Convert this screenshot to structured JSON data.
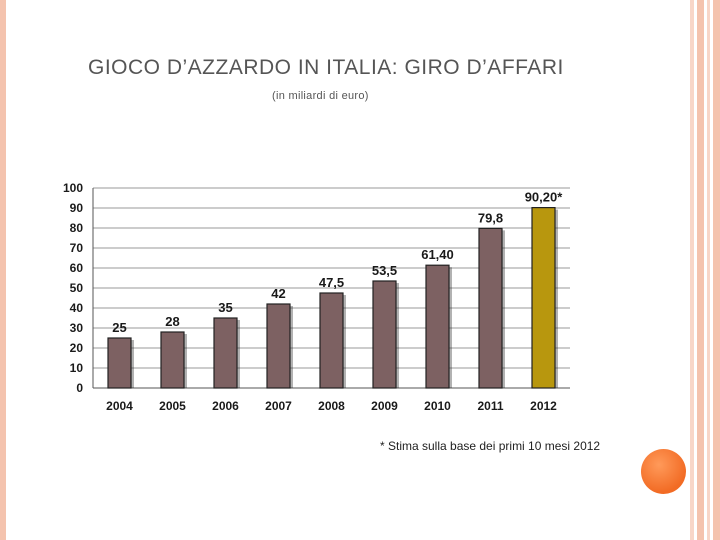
{
  "slide": {
    "title": "Gioco d’azzardo in Italia: giro d’affari",
    "subtitle": "(in miliardi di euro)",
    "footnote": "* Stima sulla base dei primi 10 mesi 2012"
  },
  "colors": {
    "bar": "#7d6162",
    "bar_highlight": "#b8970e",
    "frame": "#f4c3ae",
    "circle": "#f26b24"
  },
  "chart_data": {
    "type": "bar",
    "categories": [
      "2004",
      "2005",
      "2006",
      "2007",
      "2008",
      "2009",
      "2010",
      "2011",
      "2012"
    ],
    "values": [
      25,
      28,
      35,
      42,
      47.5,
      53.5,
      61.4,
      79.8,
      90.2
    ],
    "data_labels": [
      "25",
      "28",
      "35",
      "42",
      "47,5",
      "53,5",
      "61,40",
      "79,8",
      "90,20*"
    ],
    "highlight_index": 8,
    "yticks": [
      "0",
      "10",
      "20",
      "30",
      "40",
      "50",
      "60",
      "70",
      "80",
      "90",
      "100"
    ],
    "ylim": [
      0,
      100
    ],
    "grid": true,
    "legend": "none"
  }
}
